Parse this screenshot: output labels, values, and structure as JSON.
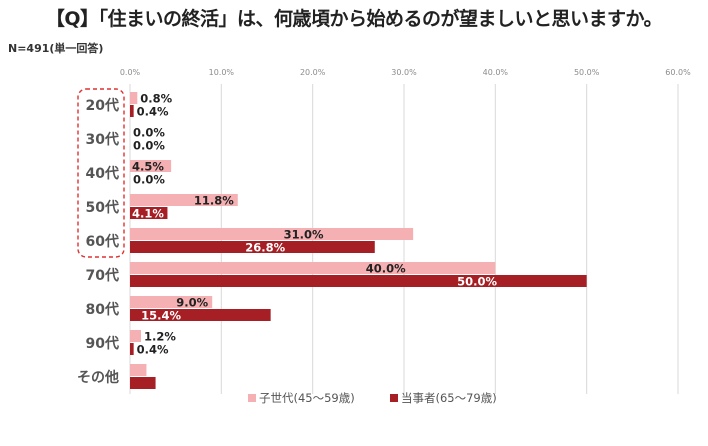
{
  "chart_data": {
    "type": "bar",
    "orientation": "horizontal",
    "title": "【Q】「住まいの終活」は、何歳頃から始めるのが望ましいと思いますか。",
    "subtitle": "N=491(単一回答)",
    "categories": [
      "20代",
      "30代",
      "40代",
      "50代",
      "60代",
      "70代",
      "80代",
      "90代",
      "その他"
    ],
    "highlighted_categories": [
      "20代",
      "30代",
      "40代",
      "50代",
      "60代"
    ],
    "xlim": [
      0,
      60
    ],
    "x_ticks": [
      0,
      10,
      20,
      30,
      40,
      50,
      60
    ],
    "x_tick_labels": [
      "0.0%",
      "10.0%",
      "20.0%",
      "30.0%",
      "40.0%",
      "50.0%",
      "60.0%"
    ],
    "grid": true,
    "legend_position": "bottom",
    "series": [
      {
        "name": "子世代(45～59歳)",
        "color": "#f4b0b2",
        "values": [
          0.8,
          0.0,
          4.5,
          11.8,
          31.0,
          40.0,
          9.0,
          1.2,
          1.8
        ],
        "labels": [
          "0.8%",
          "0.0%",
          "4.5%",
          "11.8%",
          "31.0%",
          "40.0%",
          "9.0%",
          "1.2%",
          ""
        ]
      },
      {
        "name": "当事者(65～79歳)",
        "color": "#a51f24",
        "values": [
          0.4,
          0.0,
          0.0,
          4.1,
          26.8,
          50.0,
          15.4,
          0.4,
          2.8
        ],
        "labels": [
          "0.4%",
          "0.0%",
          "0.0%",
          "4.1%",
          "26.8%",
          "50.0%",
          "15.4%",
          "0.4%",
          ""
        ]
      }
    ]
  }
}
